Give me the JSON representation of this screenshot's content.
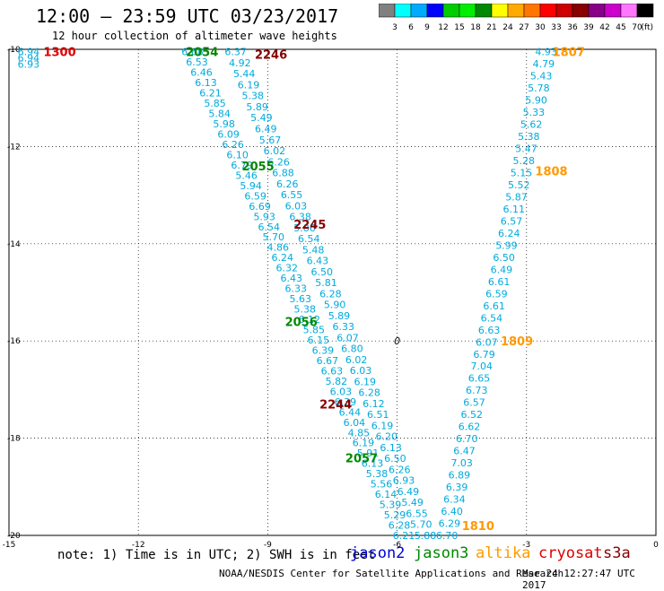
{
  "title": "12:00 – 23:59 UTC 03/23/2017",
  "subtitle": "12 hour collection of altimeter wave heights",
  "colorbar": {
    "ticks": [
      "3",
      "6",
      "9",
      "12",
      "15",
      "18",
      "21",
      "24",
      "27",
      "30",
      "33",
      "36",
      "39",
      "42",
      "45",
      "70"
    ],
    "unit": "(ft)",
    "colors": [
      "#808080",
      "#00ffff",
      "#00aaff",
      "#0000ff",
      "#00cc00",
      "#00ee00",
      "#008800",
      "#ffff00",
      "#ffaa00",
      "#ff7700",
      "#ff0000",
      "#cc0000",
      "#880000",
      "#880088",
      "#cc00cc",
      "#ff77ff",
      "#000000"
    ]
  },
  "note": "note: 1) Time is in UTC; 2) SWH is in feet",
  "legend": [
    {
      "name": "jason2",
      "color": "#0000dd"
    },
    {
      "name": "jason3",
      "color": "#008800"
    },
    {
      "name": "altika",
      "color": "#ff9900"
    },
    {
      "name": "cryosat",
      "color": "#dd0000"
    },
    {
      "name": "s3a",
      "color": "#880000"
    }
  ],
  "credit": "NOAA/NESDIS Center for Satellite Applications and Research",
  "timestamp": "Mar 24 12:27:47 UTC 2017",
  "chart_data": {
    "type": "scatter",
    "xlim": [
      -15,
      0
    ],
    "ylim": [
      -20,
      -10
    ],
    "xticks": [
      "-15",
      "-12",
      "-9",
      "-6",
      "-3",
      "0"
    ],
    "yticks": [
      "-10",
      "-12",
      "-14",
      "-16",
      "-18",
      "-20"
    ],
    "grid": true,
    "value_color": "#00aadd",
    "time_labels": [
      {
        "text": "1300",
        "x": -14.2,
        "y": -10.05,
        "color": "#dd0000"
      },
      {
        "text": "2054",
        "x": -10.9,
        "y": -10.05,
        "color": "#008800"
      },
      {
        "text": "2246",
        "x": -9.3,
        "y": -10.1,
        "color": "#880000"
      },
      {
        "text": "1807",
        "x": -2.4,
        "y": -10.05,
        "color": "#ff9900"
      },
      {
        "text": "2055",
        "x": -9.6,
        "y": -12.4,
        "color": "#008800"
      },
      {
        "text": "1808",
        "x": -2.8,
        "y": -12.5,
        "color": "#ff9900"
      },
      {
        "text": "2245",
        "x": -8.4,
        "y": -13.6,
        "color": "#880000"
      },
      {
        "text": "2056",
        "x": -8.6,
        "y": -15.6,
        "color": "#008800"
      },
      {
        "text": "1809",
        "x": -3.6,
        "y": -16.0,
        "color": "#ff9900"
      },
      {
        "text": "2244",
        "x": -7.8,
        "y": -17.3,
        "color": "#880000"
      },
      {
        "text": "2057",
        "x": -7.2,
        "y": -18.4,
        "color": "#008800"
      },
      {
        "text": "1810",
        "x": -4.5,
        "y": -19.8,
        "color": "#ff9900"
      }
    ],
    "tracks": [
      {
        "x0": -14.8,
        "y0": -10.05,
        "x1": -14.8,
        "y1": -10.3,
        "values": [
          "6.94",
          "6.94",
          "6.93"
        ]
      },
      {
        "x0": -11.0,
        "y0": -10.05,
        "x1": -6.1,
        "y1": -20.0,
        "values": [
          "6.68",
          "6.53",
          "6.46",
          "6.13",
          "6.21",
          "5.85",
          "5.84",
          "5.98",
          "6.09",
          "6.26",
          "6.10",
          "6.79",
          "5.46",
          "5.94",
          "6.59",
          "6.69",
          "5.93",
          "6.54",
          "5.70",
          "4.86",
          "6.24",
          "6.32",
          "6.43",
          "6.33",
          "5.63",
          "5.38",
          "6.12",
          "5.85",
          "6.15",
          "6.39",
          "6.67",
          "6.63",
          "5.82",
          "6.03",
          "6.39",
          "6.44",
          "6.04",
          "4.85",
          "6.19",
          "5.91",
          "6.13",
          "5.38",
          "5.56",
          "6.14",
          "5.39",
          "5.29",
          "6.28",
          "6.21"
        ]
      },
      {
        "x0": -10.0,
        "y0": -10.05,
        "x1": -5.6,
        "y1": -20.0,
        "values": [
          "6.37",
          "4.92",
          "5.44",
          "6.19",
          "5.38",
          "5.89",
          "5.49",
          "6.49",
          "5.67",
          "6.02",
          "6.26",
          "6.88",
          "6.26",
          "6.55",
          "6.03",
          "6.38",
          "5.86",
          "6.54",
          "5.48",
          "6.43",
          "6.50",
          "5.81",
          "6.28",
          "5.90",
          "5.89",
          "6.33",
          "6.07",
          "6.80",
          "6.02",
          "6.03",
          "6.19",
          "6.28",
          "6.12",
          "6.51",
          "6.19",
          "6.20",
          "6.13",
          "6.50",
          "6.26",
          "6.93",
          "6.49",
          "5.49",
          "6.55",
          "5.70",
          "5.88"
        ]
      },
      {
        "x0": -2.8,
        "y0": -10.05,
        "x1": -5.1,
        "y1": -20.0,
        "values": [
          "4.93",
          "4.79",
          "5.43",
          "5.78",
          "5.90",
          "5.33",
          "5.62",
          "5.38",
          "5.47",
          "5.28",
          "5.15",
          "5.52",
          "5.87",
          "6.11",
          "6.57",
          "6.24",
          "5.99",
          "6.50",
          "6.49",
          "6.61",
          "6.59",
          "6.61",
          "6.54",
          "6.63",
          "6.07",
          "6.79",
          "7.04",
          "6.65",
          "6.73",
          "6.57",
          "6.52",
          "6.62",
          "6.70",
          "6.47",
          "7.03",
          "6.89",
          "6.39",
          "6.34",
          "6.40",
          "6.29",
          "6.70"
        ]
      }
    ],
    "contour_label": {
      "text": "0",
      "x": -6.0,
      "y": -16.0
    }
  }
}
